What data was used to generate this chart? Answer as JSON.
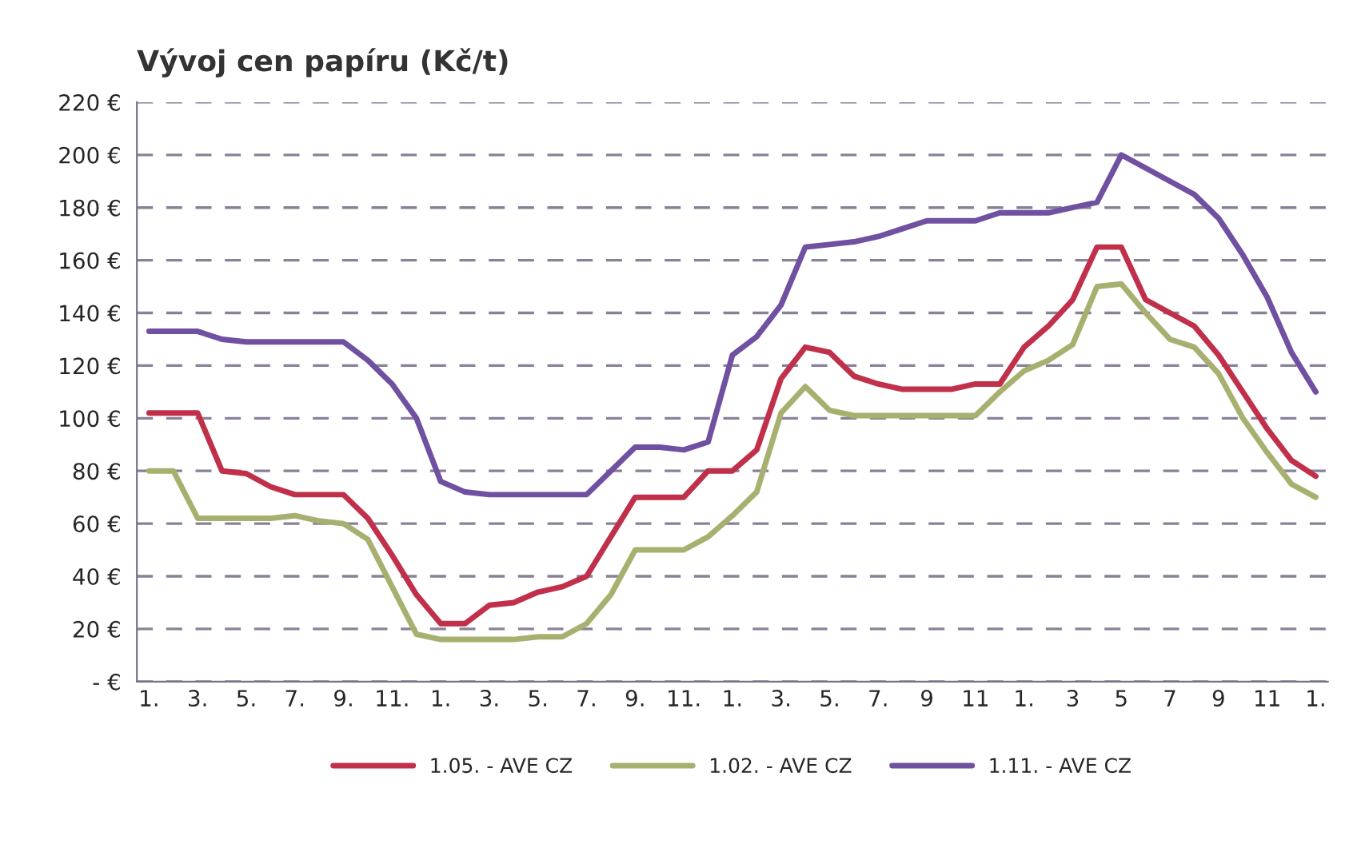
{
  "chart_data": {
    "type": "line",
    "title": "Vývoj cen papíru (Kč/t)",
    "categories": [
      "1.",
      null,
      "3.",
      null,
      "5.",
      null,
      "7.",
      null,
      "9.",
      null,
      "11.",
      null,
      "1.",
      null,
      "3.",
      null,
      "5.",
      null,
      "7.",
      null,
      "9.",
      null,
      "11.",
      null,
      "1.",
      null,
      "3.",
      null,
      "5.",
      null,
      "7.",
      null,
      "9",
      null,
      "11",
      null,
      "1.",
      null,
      "3",
      null,
      "5",
      null,
      "7",
      null,
      "9",
      null,
      "11",
      null,
      "1."
    ],
    "series": [
      {
        "name": "1.05. - AVE CZ",
        "color": "#c0304a",
        "values": [
          102,
          102,
          102,
          80,
          79,
          74,
          71,
          71,
          71,
          62,
          48,
          33,
          22,
          22,
          29,
          30,
          34,
          36,
          40,
          55,
          70,
          70,
          70,
          80,
          80,
          88,
          115,
          127,
          125,
          116,
          113,
          111,
          111,
          111,
          113,
          113,
          127,
          135,
          145,
          165,
          165,
          145,
          140,
          135,
          124,
          110,
          96,
          84,
          78
        ]
      },
      {
        "name": "1.02. - AVE CZ",
        "color": "#a8b070",
        "values": [
          80,
          80,
          62,
          62,
          62,
          62,
          63,
          61,
          60,
          54,
          36,
          18,
          16,
          16,
          16,
          16,
          17,
          17,
          22,
          33,
          50,
          50,
          50,
          55,
          63,
          72,
          102,
          112,
          103,
          101,
          101,
          101,
          101,
          101,
          101,
          110,
          118,
          122,
          128,
          150,
          151,
          140,
          130,
          127,
          117,
          100,
          87,
          75,
          70
        ]
      },
      {
        "name": "1.11. - AVE CZ",
        "color": "#7050a0",
        "values": [
          133,
          133,
          133,
          130,
          129,
          129,
          129,
          129,
          129,
          122,
          113,
          100,
          76,
          72,
          71,
          71,
          71,
          71,
          71,
          80,
          89,
          89,
          88,
          91,
          124,
          131,
          143,
          165,
          166,
          167,
          169,
          172,
          175,
          175,
          175,
          178,
          178,
          178,
          180,
          182,
          200,
          195,
          190,
          185,
          176,
          162,
          146,
          125,
          110
        ]
      }
    ],
    "ylim": [
      0,
      220
    ],
    "yticks": [
      {
        "value": 0,
        "label": "- €"
      },
      {
        "value": 20,
        "label": "20 €"
      },
      {
        "value": 40,
        "label": "40 €"
      },
      {
        "value": 60,
        "label": "60 €"
      },
      {
        "value": 80,
        "label": "80 €"
      },
      {
        "value": 100,
        "label": "100 €"
      },
      {
        "value": 120,
        "label": "120 €"
      },
      {
        "value": 140,
        "label": "140 €"
      },
      {
        "value": 160,
        "label": "160 €"
      },
      {
        "value": 180,
        "label": "180 €"
      },
      {
        "value": 200,
        "label": "200 €"
      },
      {
        "value": 220,
        "label": "220 €"
      }
    ],
    "grid": "y",
    "legend": "bottom",
    "marker": "none",
    "line_style": "solid"
  }
}
